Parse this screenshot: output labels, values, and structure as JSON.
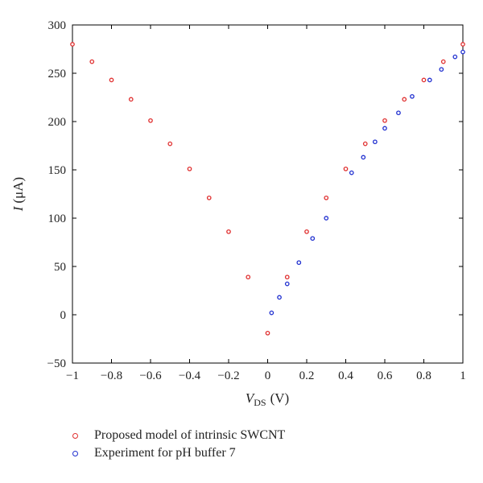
{
  "chart_data": {
    "type": "scatter",
    "title": "",
    "xlabel_main": "V",
    "xlabel_sub": "DS",
    "xlabel_unit": "(V)",
    "ylabel_main": "I",
    "ylabel_unit": "(μA)",
    "xlim": [
      -1,
      1
    ],
    "ylim": [
      -50,
      300
    ],
    "xticks": [
      -1,
      -0.8,
      -0.6,
      -0.4,
      -0.2,
      0,
      0.2,
      0.4,
      0.6,
      0.8,
      1
    ],
    "xtick_labels": [
      "−1",
      "−0.8",
      "−0.6",
      "−0.4",
      "−0.2",
      "0",
      "0.2",
      "0.4",
      "0.6",
      "0.8",
      "1"
    ],
    "yticks": [
      -50,
      0,
      50,
      100,
      150,
      200,
      250,
      300
    ],
    "ytick_labels": [
      "−50",
      "0",
      "50",
      "100",
      "150",
      "200",
      "250",
      "300"
    ],
    "grid": false,
    "legend_position": "bottom",
    "series": [
      {
        "name": "Proposed model of intrinsic SWCNT",
        "color": "#e03030",
        "x": [
          -1,
          -0.9,
          -0.8,
          -0.7,
          -0.6,
          -0.5,
          -0.4,
          -0.3,
          -0.2,
          -0.1,
          0,
          0.1,
          0.2,
          0.3,
          0.4,
          0.5,
          0.6,
          0.7,
          0.8,
          0.9,
          1
        ],
        "y": [
          280,
          262,
          243,
          223,
          201,
          177,
          151,
          121,
          86,
          39,
          -19,
          39,
          86,
          121,
          151,
          177,
          201,
          223,
          243,
          262,
          280
        ]
      },
      {
        "name": "Experiment for pH buffer 7",
        "color": "#2030d0",
        "x": [
          0.02,
          0.06,
          0.1,
          0.16,
          0.23,
          0.3,
          0.43,
          0.49,
          0.55,
          0.6,
          0.67,
          0.74,
          0.83,
          0.89,
          0.96,
          1.0
        ],
        "y": [
          2,
          18,
          32,
          54,
          79,
          100,
          147,
          163,
          179,
          193,
          209,
          226,
          243,
          254,
          267,
          272
        ]
      }
    ]
  }
}
